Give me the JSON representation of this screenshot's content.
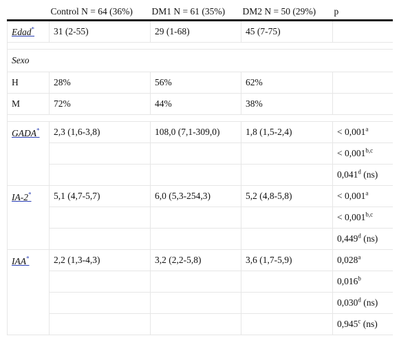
{
  "headers": [
    "",
    "Control N = 64 (36%)",
    "DM1 N = 61 (35%)",
    "DM2 N = 50 (29%)",
    "p"
  ],
  "edad": {
    "label": "Edad",
    "star": "*",
    "control": "31 (2-55)",
    "dm1": "29 (1-68)",
    "dm2": "45 (7-75)"
  },
  "sexo": {
    "label": "Sexo"
  },
  "h": {
    "label": "H",
    "control": "28%",
    "dm1": "56%",
    "dm2": "62%"
  },
  "m": {
    "label": "M",
    "control": "72%",
    "dm1": "44%",
    "dm2": "38%"
  },
  "gada": {
    "label": "GADA",
    "star": "*",
    "control": "2,3 (1,6-3,8)",
    "dm1": "108,0 (7,1-309,0)",
    "dm2": "1,8 (1,5-2,4)",
    "p": [
      {
        "value": "< 0,001",
        "sup": "a",
        "note": ""
      },
      {
        "value": "< 0,001",
        "sup": "b,c",
        "note": ""
      },
      {
        "value": "0,041",
        "sup": "d",
        "note": " (ns)"
      }
    ]
  },
  "ia2": {
    "label": "IA-2",
    "star": "*",
    "control": "5,1 (4,7-5,7)",
    "dm1": "6,0 (5,3-254,3)",
    "dm2": "5,2 (4,8-5,8)",
    "p": [
      {
        "value": "< 0,001",
        "sup": "a",
        "note": ""
      },
      {
        "value": "< 0,001",
        "sup": "b,c",
        "note": ""
      },
      {
        "value": "0,449",
        "sup": "d",
        "note": " (ns)"
      }
    ]
  },
  "iaa": {
    "label": "IAA",
    "star": "*",
    "control": "2,2 (1,3-4,3)",
    "dm1": "3,2 (2,2-5,8)",
    "dm2": "3,6 (1,7-5,9)",
    "p": [
      {
        "value": "0,028",
        "sup": "a",
        "note": ""
      },
      {
        "value": "0,016",
        "sup": "b",
        "note": ""
      },
      {
        "value": "0,030",
        "sup": "d",
        "note": " (ns)"
      },
      {
        "value": "0,945",
        "sup": "c",
        "note": " (ns)"
      }
    ]
  }
}
